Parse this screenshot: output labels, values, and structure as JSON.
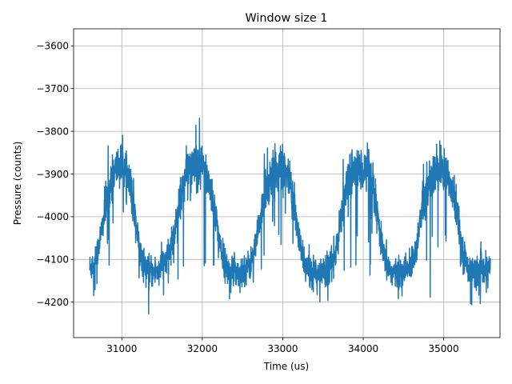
{
  "chart_data": {
    "type": "line",
    "title": "Window size 1",
    "xlabel": "Time (us)",
    "ylabel": "Pressure (counts)",
    "xlim": [
      30400,
      35700
    ],
    "ylim": [
      -4283,
      -3560
    ],
    "xticks": [
      31000,
      32000,
      33000,
      34000,
      35000
    ],
    "xtick_labels": [
      "31000",
      "32000",
      "33000",
      "34000",
      "35000"
    ],
    "yticks": [
      -4200,
      -4100,
      -4000,
      -3900,
      -3800,
      -3700,
      -3600
    ],
    "ytick_labels": [
      "−4200",
      "−4100",
      "−4000",
      "−3900",
      "−3800",
      "−3700",
      "−3600"
    ],
    "grid": true,
    "legend": "none",
    "series": [
      {
        "color": "#1f77b4",
        "x_range": [
          30600,
          35580
        ],
        "period": 990,
        "phase_start_x": 30600,
        "mean": -4012,
        "amplitude": 108,
        "noise_high_phase": 45,
        "noise_low_phase": 22,
        "x": [
          30600,
          30650,
          30700,
          30750,
          30800,
          30850,
          30900,
          30950,
          31000,
          31050,
          31100,
          31150,
          31200,
          31250,
          31300,
          31350,
          31400,
          31450,
          31500,
          31550,
          31600,
          31650,
          31700,
          31750,
          31800,
          31850,
          31900,
          31950,
          32000,
          32050,
          32100,
          32150,
          32200,
          32250,
          32300,
          32350,
          32400,
          32450,
          32500,
          32550,
          32600,
          32650,
          32700,
          32750,
          32800,
          32850,
          32900,
          32950,
          33000,
          33050,
          33100,
          33150,
          33200,
          33250,
          33300,
          33350,
          33400,
          33450,
          33500,
          33550,
          33600,
          33650,
          33700,
          33750,
          33800,
          33850,
          33900,
          33950,
          34000,
          34050,
          34100,
          34150,
          34200,
          34250,
          34300,
          34350,
          34400,
          34450,
          34500,
          34550,
          34600,
          34650,
          34700,
          34750,
          34800,
          34850,
          34900,
          34950,
          35000,
          35050,
          35100,
          35150,
          35200,
          35250,
          35300,
          35350,
          35400,
          35450,
          35500,
          35550,
          35580
        ],
        "y": [
          -4120,
          -4110,
          -4080,
          -4030,
          -3980,
          -3940,
          -3900,
          -3880,
          -3880,
          -3900,
          -3930,
          -3980,
          -4050,
          -4100,
          -4120,
          -4130,
          -4130,
          -4125,
          -4110,
          -4100,
          -4080,
          -4040,
          -3980,
          -3930,
          -3900,
          -3880,
          -3885,
          -3900,
          -3880,
          -3900,
          -3930,
          -3980,
          -4040,
          -4090,
          -4120,
          -4130,
          -4125,
          -4130,
          -4130,
          -4120,
          -4110,
          -4080,
          -4030,
          -3970,
          -3930,
          -3910,
          -3890,
          -3890,
          -3890,
          -3900,
          -3940,
          -3990,
          -4050,
          -4100,
          -4120,
          -4125,
          -4125,
          -4130,
          -4130,
          -4115,
          -4110,
          -4090,
          -4040,
          -3970,
          -3930,
          -3900,
          -3890,
          -3890,
          -3890,
          -3900,
          -3925,
          -3970,
          -4030,
          -4090,
          -4115,
          -4130,
          -4130,
          -4135,
          -4130,
          -4125,
          -4110,
          -4080,
          -4020,
          -3970,
          -3935,
          -3905,
          -3895,
          -3890,
          -3895,
          -3905,
          -3930,
          -3980,
          -4040,
          -4090,
          -4120,
          -4130,
          -4130,
          -4125,
          -4130,
          -4130,
          -4120
        ]
      }
    ]
  }
}
